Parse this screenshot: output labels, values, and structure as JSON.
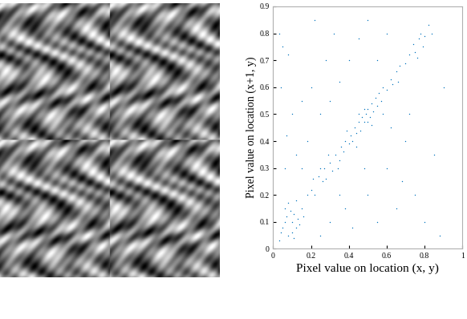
{
  "chart_data": {
    "type": "scatter",
    "xlabel": "Pixel value on location (x, y)",
    "ylabel": "Pixel value on location (x+1, y)",
    "color": "#0072bd",
    "marker": "point",
    "xlim": [
      0,
      1
    ],
    "ylim": [
      0,
      0.9
    ],
    "xticks": [
      0,
      0.2,
      0.4,
      0.6,
      0.8,
      1
    ],
    "yticks": [
      0,
      0.1,
      0.2,
      0.3,
      0.4,
      0.5,
      0.6,
      0.7,
      0.8,
      0.9
    ],
    "x": [
      0.05,
      0.07,
      0.08,
      0.1,
      0.12,
      0.09,
      0.06,
      0.11,
      0.13,
      0.04,
      0.15,
      0.14,
      0.1,
      0.08,
      0.12,
      0.16,
      0.18,
      0.06,
      0.03,
      0.11,
      0.2,
      0.22,
      0.24,
      0.26,
      0.27,
      0.28,
      0.3,
      0.31,
      0.33,
      0.35,
      0.36,
      0.37,
      0.38,
      0.4,
      0.41,
      0.42,
      0.43,
      0.44,
      0.45,
      0.46,
      0.47,
      0.48,
      0.49,
      0.5,
      0.51,
      0.52,
      0.53,
      0.54,
      0.5,
      0.48,
      0.55,
      0.56,
      0.57,
      0.58,
      0.6,
      0.62,
      0.63,
      0.65,
      0.67,
      0.7,
      0.72,
      0.74,
      0.75,
      0.77,
      0.78,
      0.8,
      0.82,
      0.84,
      0.79,
      0.76,
      0.39,
      0.34,
      0.29,
      0.25,
      0.21,
      0.45,
      0.52,
      0.44,
      0.58,
      0.66,
      0.03,
      0.05,
      0.08,
      0.04,
      0.1,
      0.07,
      0.12,
      0.06,
      0.15,
      0.2,
      0.18,
      0.25,
      0.28,
      0.3,
      0.32,
      0.35,
      0.4,
      0.22,
      0.45,
      0.5,
      0.6,
      0.55,
      0.38,
      0.42,
      0.5,
      0.55,
      0.6,
      0.65,
      0.7,
      0.75,
      0.8,
      0.85,
      0.88,
      0.9,
      0.72,
      0.3,
      0.25,
      0.48,
      0.62,
      0.68,
      0.35,
      0.15
    ],
    "values": [
      0.08,
      0.12,
      0.05,
      0.1,
      0.08,
      0.14,
      0.1,
      0.13,
      0.11,
      0.06,
      0.15,
      0.09,
      0.06,
      0.17,
      0.18,
      0.12,
      0.2,
      0.15,
      0.03,
      0.04,
      0.22,
      0.2,
      0.27,
      0.25,
      0.3,
      0.26,
      0.32,
      0.29,
      0.35,
      0.33,
      0.38,
      0.36,
      0.4,
      0.39,
      0.42,
      0.4,
      0.45,
      0.43,
      0.47,
      0.44,
      0.49,
      0.47,
      0.5,
      0.52,
      0.49,
      0.54,
      0.51,
      0.56,
      0.47,
      0.52,
      0.53,
      0.58,
      0.55,
      0.6,
      0.59,
      0.63,
      0.61,
      0.66,
      0.68,
      0.69,
      0.72,
      0.76,
      0.73,
      0.78,
      0.8,
      0.79,
      0.83,
      0.8,
      0.75,
      0.71,
      0.44,
      0.3,
      0.35,
      0.3,
      0.26,
      0.5,
      0.46,
      0.38,
      0.5,
      0.62,
      0.8,
      0.75,
      0.72,
      0.6,
      0.5,
      0.42,
      0.35,
      0.3,
      0.55,
      0.6,
      0.4,
      0.5,
      0.7,
      0.55,
      0.8,
      0.62,
      0.7,
      0.85,
      0.78,
      0.85,
      0.8,
      0.7,
      0.15,
      0.08,
      0.2,
      0.1,
      0.3,
      0.15,
      0.4,
      0.2,
      0.1,
      0.35,
      0.05,
      0.6,
      0.5,
      0.1,
      0.05,
      0.3,
      0.45,
      0.25,
      0.2,
      0.3
    ]
  }
}
